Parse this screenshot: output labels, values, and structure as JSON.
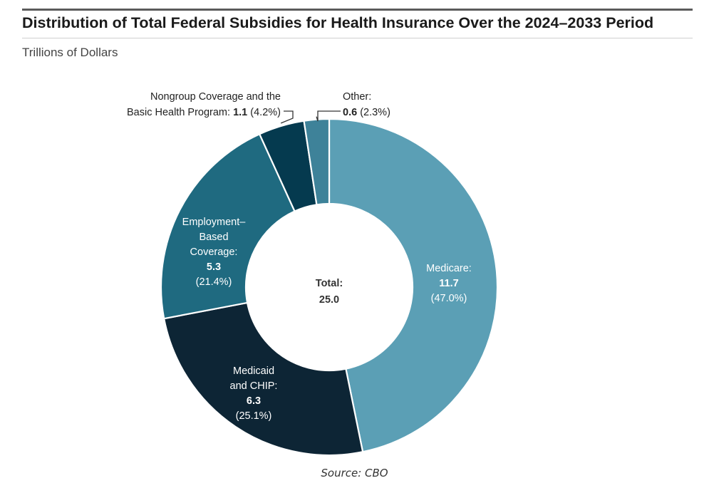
{
  "header": {
    "title": "Distribution of Total Federal Subsidies for Health Insurance Over the 2024–2033 Period",
    "subtitle": "Trillions of Dollars"
  },
  "footer": {
    "source": "Source: CBO"
  },
  "chart_data": {
    "type": "pie",
    "title": "Distribution of Total Federal Subsidies for Health Insurance Over the 2024–2033 Period",
    "subtitle": "Trillions of Dollars",
    "donut": true,
    "center_label": {
      "line1": "Total:",
      "line2": "25.0"
    },
    "total": 25.0,
    "slices": [
      {
        "label_lines": [
          "Medicare:"
        ],
        "value": 11.7,
        "value_text": "11.7",
        "percent_text": "(47.0%)",
        "color": "#5b9fb5"
      },
      {
        "label_lines": [
          "Medicaid",
          "and CHIP:"
        ],
        "value": 6.3,
        "value_text": "6.3",
        "percent_text": "(25.1%)",
        "color": "#0d2535"
      },
      {
        "label_lines": [
          "Employment–",
          "Based",
          "Coverage:"
        ],
        "value": 5.3,
        "value_text": "5.3",
        "percent_text": "(21.4%)",
        "color": "#1f6a80"
      },
      {
        "label_lines": [
          "Nongroup Coverage and the",
          "Basic Health Program:"
        ],
        "value": 1.1,
        "value_text": "1.1",
        "percent_text": "(4.2%)",
        "color": "#053a4f"
      },
      {
        "label_lines": [
          "Other:"
        ],
        "value": 0.6,
        "value_text": "0.6",
        "percent_text": "(2.3%)",
        "color": "#3e8299"
      }
    ]
  }
}
